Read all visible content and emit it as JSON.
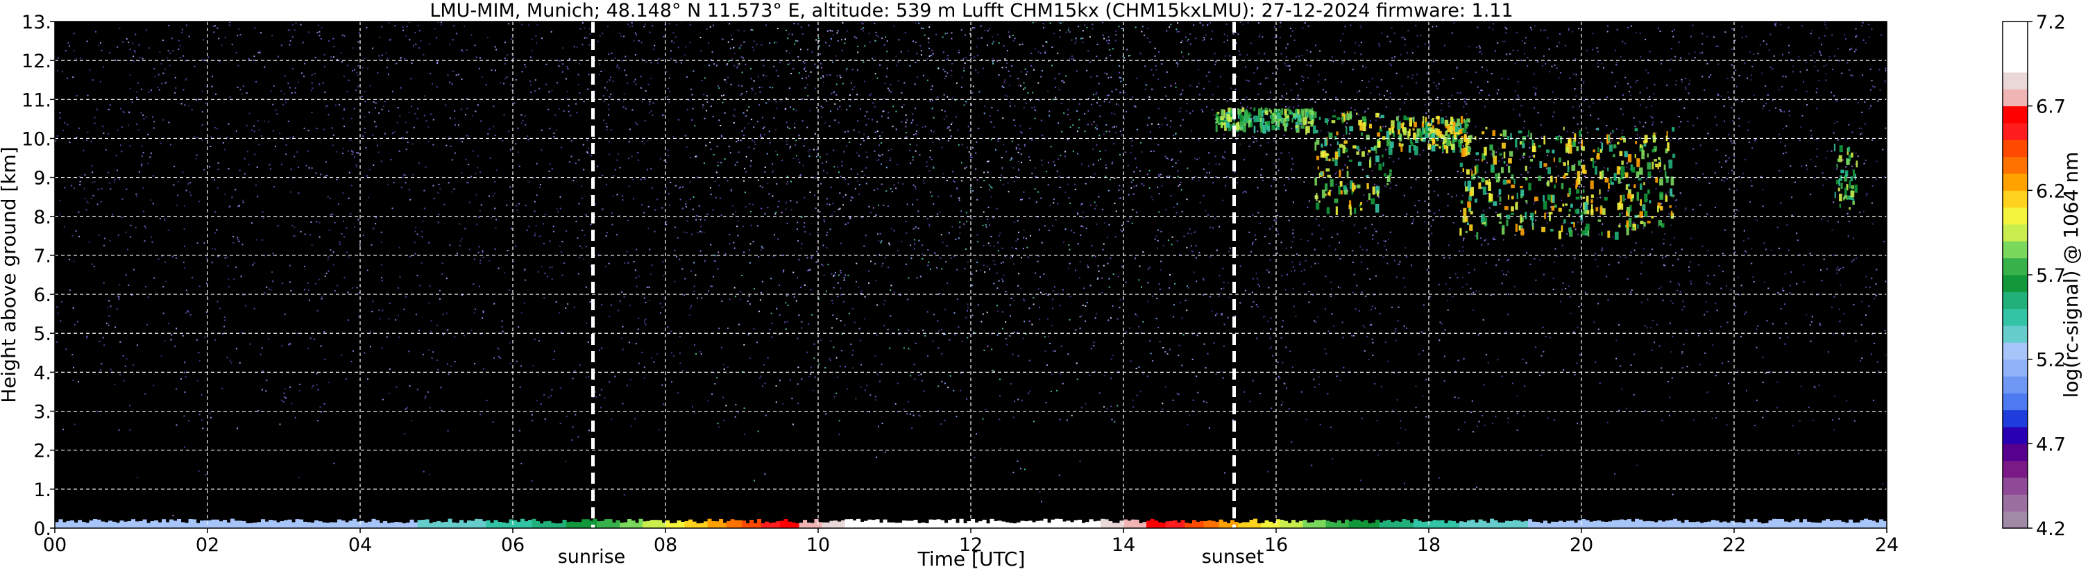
{
  "chart_data": {
    "type": "heatmap",
    "title": "LMU-MIM, Munich; 48.148° N 11.573° E, altitude: 539 m    Lufft CHM15kx (CHM15kxLMU): 27-12-2024    firmware: 1.11",
    "xlabel": "Time [UTC]",
    "ylabel": "Height above ground [km]",
    "x_range": [
      0,
      24
    ],
    "y_range": [
      0,
      13
    ],
    "x_ticks": [
      "00",
      "02",
      "04",
      "06",
      "08",
      "10",
      "12",
      "14",
      "16",
      "18",
      "20",
      "22",
      "24"
    ],
    "y_ticks": [
      "0.",
      "1.",
      "2.",
      "3.",
      "4.",
      "5.",
      "6.",
      "7.",
      "8.",
      "9.",
      "10.",
      "11.",
      "12.",
      "13."
    ],
    "grid": true,
    "background_color": "#000000",
    "colorbar": {
      "label": "log(rc-signal) @ 1064 nm",
      "range": [
        4.2,
        7.2
      ],
      "ticks": [
        "4.2",
        "4.7",
        "5.2",
        "5.7",
        "6.2",
        "6.7",
        "7.2"
      ],
      "colors": [
        "#a08aa6",
        "#9b6f9f",
        "#8e4a96",
        "#7a1a86",
        "#55008f",
        "#2a00b4",
        "#1f3ddd",
        "#4d7af0",
        "#6f98f5",
        "#90b2f8",
        "#a8c5fa",
        "#66cccc",
        "#33c4a5",
        "#22b07a",
        "#12983a",
        "#37b24a",
        "#7ad85c",
        "#c9ee4e",
        "#f4f43c",
        "#ffd21d",
        "#ffa200",
        "#ff7200",
        "#ff4a00",
        "#ff1d1d",
        "#ff0000",
        "#f0b4b4",
        "#ead8d8",
        "#ffffff",
        "#ffffff",
        "#ffffff"
      ]
    },
    "events": [
      {
        "label": "sunrise",
        "time": 7.05
      },
      {
        "label": "sunset",
        "time": 15.45
      }
    ],
    "cloud_layers": [
      {
        "t_start": 15.2,
        "t_end": 16.5,
        "h_low": 10.3,
        "h_high": 10.8,
        "max_log_signal": 6.0
      },
      {
        "t_start": 16.5,
        "t_end": 17.5,
        "h_low": 8.2,
        "h_high": 10.7,
        "max_log_signal": 6.3
      },
      {
        "t_start": 17.5,
        "t_end": 18.5,
        "h_low": 9.8,
        "h_high": 10.6,
        "max_log_signal": 6.3
      },
      {
        "t_start": 18.4,
        "t_end": 21.2,
        "h_low": 7.6,
        "h_high": 10.3,
        "max_log_signal": 6.3
      },
      {
        "t_start": 23.3,
        "t_end": 23.6,
        "h_low": 8.2,
        "h_high": 9.9,
        "max_log_signal": 6.0
      }
    ],
    "surface_layer": {
      "h_high": 0.2,
      "max_log_signal": 7.2
    }
  }
}
